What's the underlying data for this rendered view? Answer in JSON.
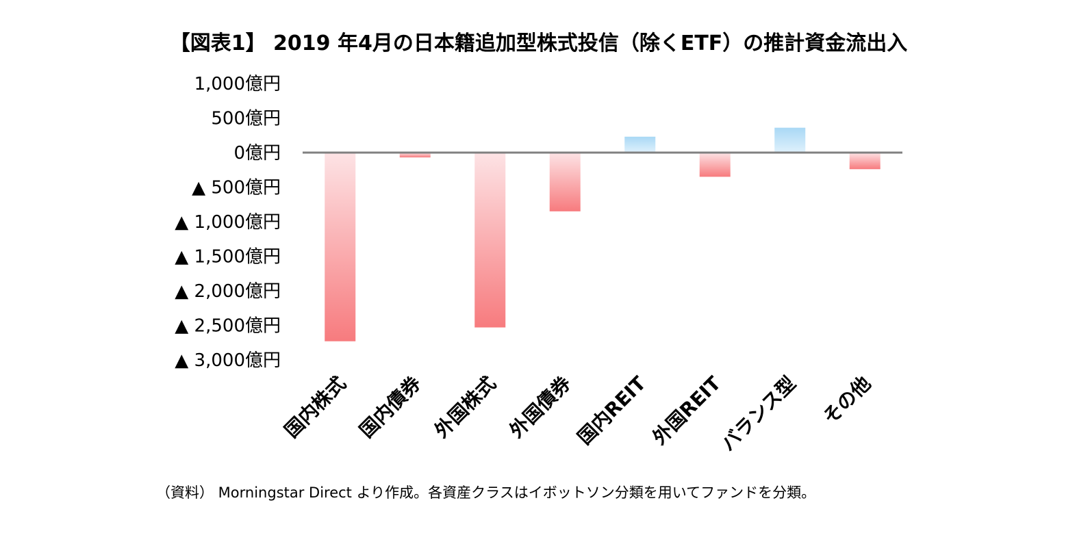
{
  "title": "【図表1】 2019 年4月の日本籍追加型株式投信（除くETF）の推計資金流出入",
  "note": "（資料） Morningstar Direct より作成。各資産クラスはイボットソン分類を用いてファンドを分類。",
  "colors": {
    "positive_top": "#a9d8f5",
    "positive_bottom": "#dff1fc",
    "negative_top": "#fde3e5",
    "negative_bottom": "#f77b7e",
    "zero_line": "#808080"
  },
  "chart_data": {
    "type": "bar",
    "categories": [
      "国内株式",
      "国内債券",
      "外国株式",
      "外国債券",
      "国内REIT",
      "外国REIT",
      "バランス型",
      "その他"
    ],
    "values": [
      -2730,
      -70,
      -2530,
      -850,
      230,
      -350,
      360,
      -240
    ],
    "unit": "億円",
    "ylim": [
      -3000,
      1000
    ],
    "yticks": [
      1000,
      500,
      0,
      -500,
      -1000,
      -1500,
      -2000,
      -2500,
      -3000
    ],
    "ytick_labels": [
      "1,000億円",
      "500億円",
      "0億円",
      "▲ 500億円",
      "▲ 1,000億円",
      "▲ 1,500億円",
      "▲ 2,000億円",
      "▲ 2,500億円",
      "▲ 3,000億円"
    ],
    "grid": false,
    "legend": "none"
  }
}
